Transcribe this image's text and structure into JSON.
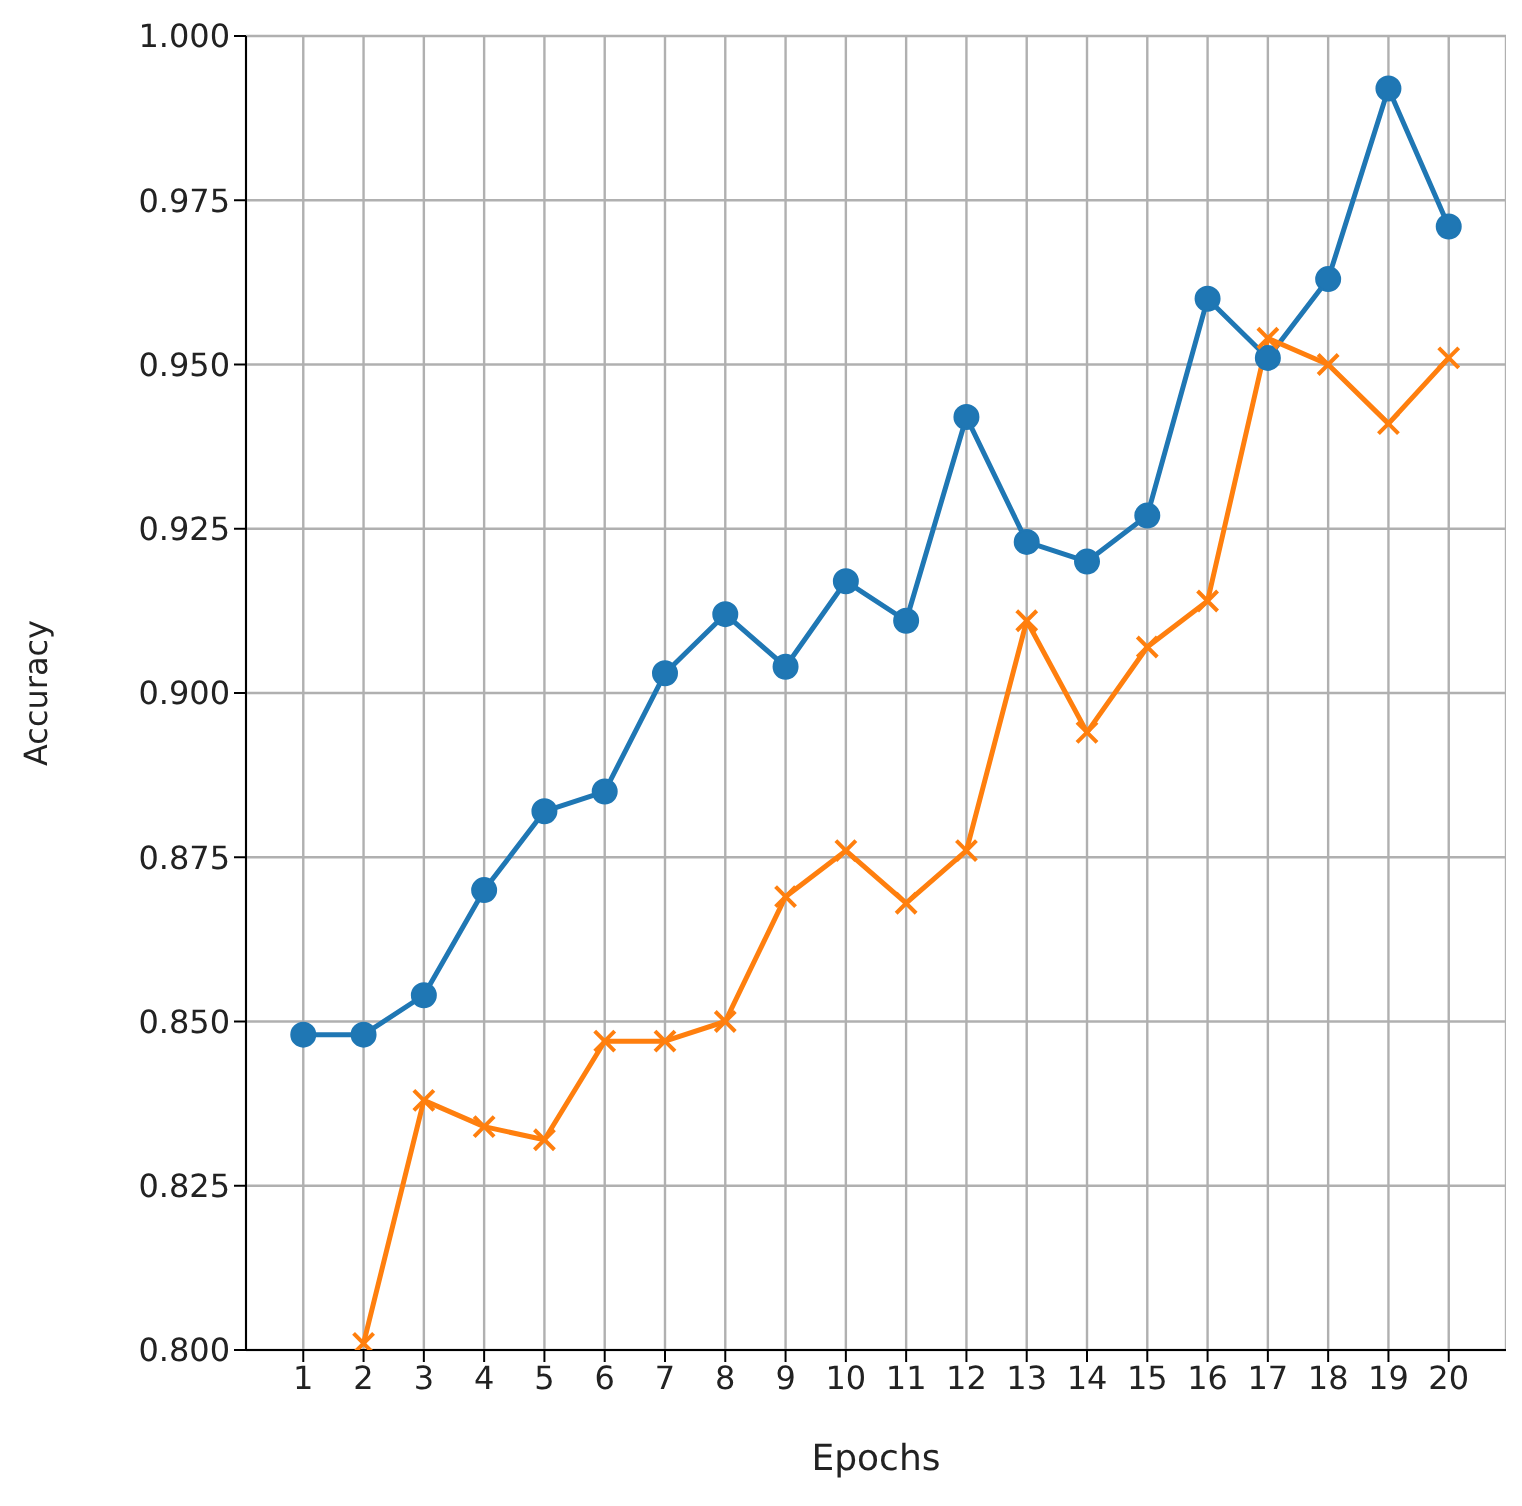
{
  "chart_data": {
    "type": "line",
    "xlabel": "Epochs",
    "ylabel": "Accuracy",
    "x": [
      1,
      2,
      3,
      4,
      5,
      6,
      7,
      8,
      9,
      10,
      11,
      12,
      13,
      14,
      15,
      16,
      17,
      18,
      19,
      20
    ],
    "series": [
      {
        "color": "#1f77b4",
        "marker": "circle",
        "values": [
          0.848,
          0.848,
          0.854,
          0.87,
          0.882,
          0.885,
          0.903,
          0.912,
          0.904,
          0.917,
          0.911,
          0.942,
          0.923,
          0.92,
          0.927,
          0.96,
          0.951,
          0.963,
          0.992,
          0.971
        ]
      },
      {
        "color": "#ff7f0e",
        "marker": "cross",
        "values": [
          null,
          0.801,
          0.838,
          0.834,
          0.832,
          0.847,
          0.847,
          0.85,
          0.869,
          0.876,
          0.868,
          0.876,
          0.911,
          0.894,
          0.907,
          0.914,
          0.954,
          0.95,
          0.941,
          0.951
        ]
      }
    ],
    "xlim": [
      0.05,
      20.95
    ],
    "xticks": [
      1,
      2,
      3,
      4,
      5,
      6,
      7,
      8,
      9,
      10,
      11,
      12,
      13,
      14,
      15,
      16,
      17,
      18,
      19,
      20
    ],
    "ylim": [
      0.8,
      1.0
    ],
    "yticks": [
      {
        "value": 0.8,
        "label": "0.800"
      },
      {
        "value": 0.825,
        "label": "0.825"
      },
      {
        "value": 0.85,
        "label": "0.850"
      },
      {
        "value": 0.875,
        "label": "0.875"
      },
      {
        "value": 0.9,
        "label": "0.900"
      },
      {
        "value": 0.925,
        "label": "0.925"
      },
      {
        "value": 0.95,
        "label": "0.950"
      },
      {
        "value": 0.975,
        "label": "0.975"
      },
      {
        "value": 1.0,
        "label": "1.000"
      }
    ],
    "grid": true,
    "legend": false
  }
}
